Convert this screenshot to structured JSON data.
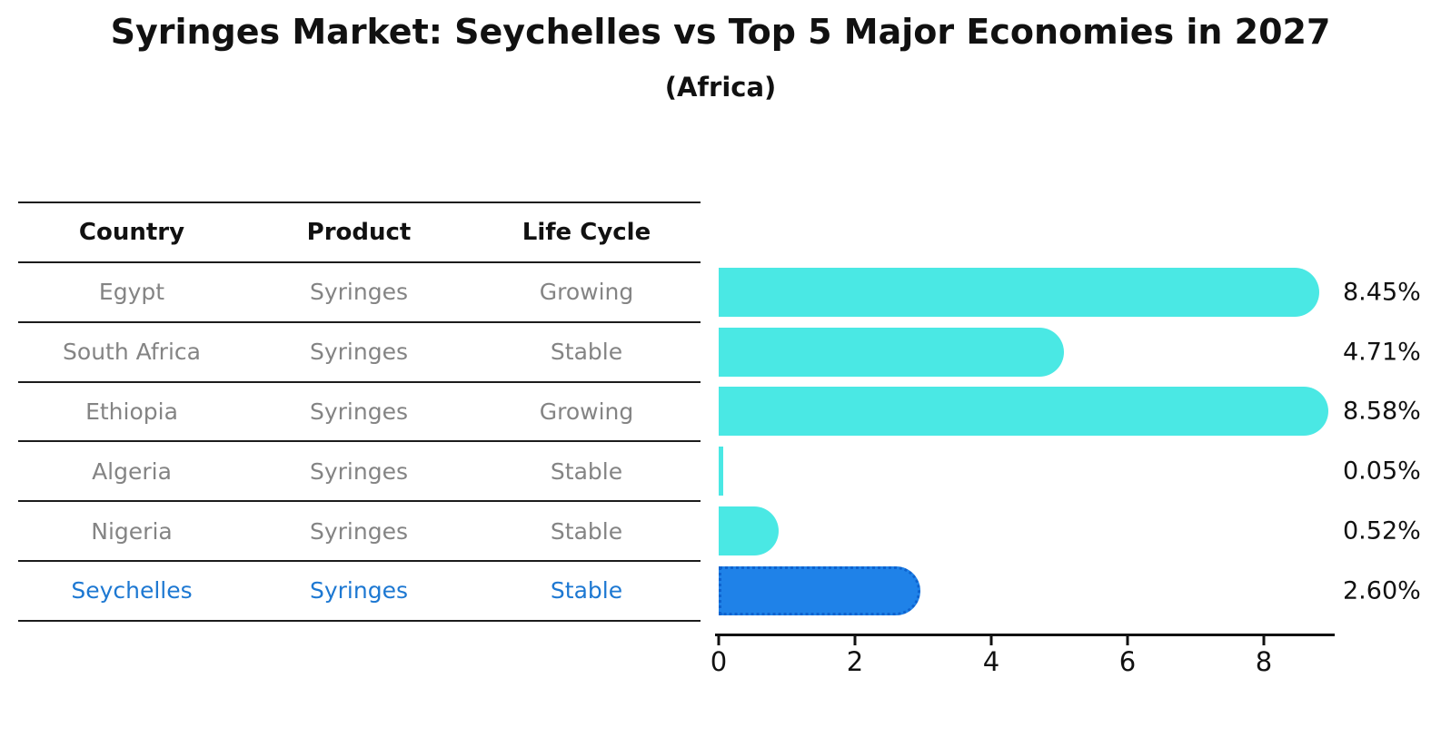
{
  "title": "Syringes Market: Seychelles vs Top 5 Major Economies in 2027",
  "subtitle": "(Africa)",
  "table": {
    "headers": [
      "Country",
      "Product",
      "Life Cycle"
    ],
    "rows": [
      {
        "country": "Egypt",
        "product": "Syringes",
        "life_cycle": "Growing",
        "highlight": false
      },
      {
        "country": "South Africa",
        "product": "Syringes",
        "life_cycle": "Stable",
        "highlight": false
      },
      {
        "country": "Ethiopia",
        "product": "Syringes",
        "life_cycle": "Growing",
        "highlight": false
      },
      {
        "country": "Algeria",
        "product": "Syringes",
        "life_cycle": "Stable",
        "highlight": false
      },
      {
        "country": "Nigeria",
        "product": "Syringes",
        "life_cycle": "Stable",
        "highlight": false
      },
      {
        "country": "Seychelles",
        "product": "Syringes",
        "life_cycle": "Stable",
        "highlight": true
      }
    ]
  },
  "chart_data": {
    "type": "bar",
    "orientation": "horizontal",
    "categories": [
      "Egypt",
      "South Africa",
      "Ethiopia",
      "Algeria",
      "Nigeria",
      "Seychelles"
    ],
    "values": [
      8.45,
      4.71,
      8.58,
      0.05,
      0.52,
      2.6
    ],
    "value_labels": [
      "8.45%",
      "4.71%",
      "8.58%",
      "0.05%",
      "0.52%",
      "2.60%"
    ],
    "title": "Syringes Market: Seychelles vs Top 5 Major Economies in 2027",
    "subtitle": "(Africa)",
    "xlabel": "",
    "ylabel": "",
    "xticks": [
      0,
      2,
      4,
      6,
      8
    ],
    "xlim": [
      0,
      9
    ],
    "grid": false,
    "legend": false,
    "bar_color": "#4ae8e4",
    "highlight_color": "#1f82e8",
    "highlight_index": 5
  },
  "colors": {
    "header_text": "#111111",
    "row_text": "#848484",
    "highlight_text": "#1d78d2",
    "axis": "#111111",
    "table_line": "#1c1c1c"
  }
}
